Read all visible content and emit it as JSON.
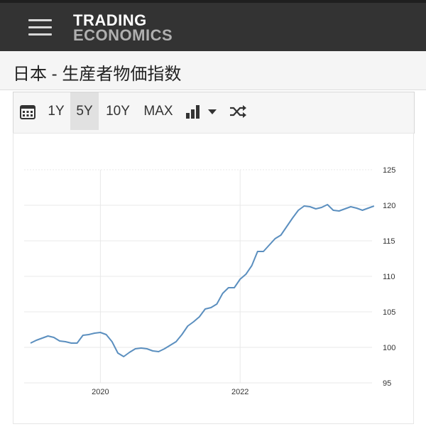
{
  "header": {
    "logo_line1": "TRADING",
    "logo_line2": "ECONOMICS",
    "title": "日本 - 生産者物価指数"
  },
  "toolbar": {
    "calendar_icon": "calendar-icon",
    "ranges": [
      {
        "label": "1Y",
        "active": false
      },
      {
        "label": "5Y",
        "active": true
      },
      {
        "label": "10Y",
        "active": false
      },
      {
        "label": "MAX",
        "active": false
      }
    ],
    "chart_type_icon": "bar-chart-icon",
    "dropdown_icon": "caret-down-icon",
    "compare_icon": "shuffle-icon"
  },
  "colors": {
    "topbar": "#333333",
    "line": "#5b8fbf",
    "active_tab": "#e1e1e1"
  },
  "chart_data": {
    "type": "line",
    "title": "",
    "xlabel": "",
    "ylabel": "",
    "ylim": [
      95,
      125
    ],
    "y_ticks": [
      "95",
      "100",
      "105",
      "110",
      "115",
      "120",
      "125"
    ],
    "x_ticks": [
      {
        "label": "2020",
        "date": "2020-01"
      },
      {
        "label": "2022",
        "date": "2022-01"
      }
    ],
    "grid": true,
    "y_axis_side": "right",
    "series": [
      {
        "x": [
          "2019-01",
          "2019-02",
          "2019-03",
          "2019-04",
          "2019-05",
          "2019-06",
          "2019-07",
          "2019-08",
          "2019-09",
          "2019-10",
          "2019-11",
          "2019-12",
          "2020-01",
          "2020-02",
          "2020-03",
          "2020-04",
          "2020-05",
          "2020-06",
          "2020-07",
          "2020-08",
          "2020-09",
          "2020-10",
          "2020-11",
          "2020-12",
          "2021-01",
          "2021-02",
          "2021-03",
          "2021-04",
          "2021-05",
          "2021-06",
          "2021-07",
          "2021-08",
          "2021-09",
          "2021-10",
          "2021-11",
          "2021-12",
          "2022-01",
          "2022-02",
          "2022-03",
          "2022-04",
          "2022-05",
          "2022-06",
          "2022-07",
          "2022-08",
          "2022-09",
          "2022-10",
          "2022-11",
          "2022-12",
          "2023-01",
          "2023-02",
          "2023-03",
          "2023-04",
          "2023-05",
          "2023-06",
          "2023-07",
          "2023-08",
          "2023-09",
          "2023-10",
          "2023-11",
          "2023-12"
        ],
        "values": [
          100.6,
          101.0,
          101.3,
          101.6,
          101.4,
          100.9,
          100.8,
          100.6,
          100.6,
          101.7,
          101.8,
          102.0,
          102.1,
          101.8,
          100.8,
          99.2,
          98.7,
          99.3,
          99.8,
          99.9,
          99.8,
          99.5,
          99.4,
          99.8,
          100.3,
          100.8,
          101.8,
          103.0,
          103.6,
          104.3,
          105.4,
          105.6,
          106.1,
          107.6,
          108.4,
          108.4,
          109.6,
          110.3,
          111.5,
          113.5,
          113.5,
          114.4,
          115.3,
          115.8,
          117.0,
          118.2,
          119.3,
          119.9,
          119.8,
          119.5,
          119.7,
          120.1,
          119.3,
          119.2,
          119.5,
          119.8,
          119.6,
          119.3,
          119.6,
          119.9
        ]
      }
    ]
  }
}
